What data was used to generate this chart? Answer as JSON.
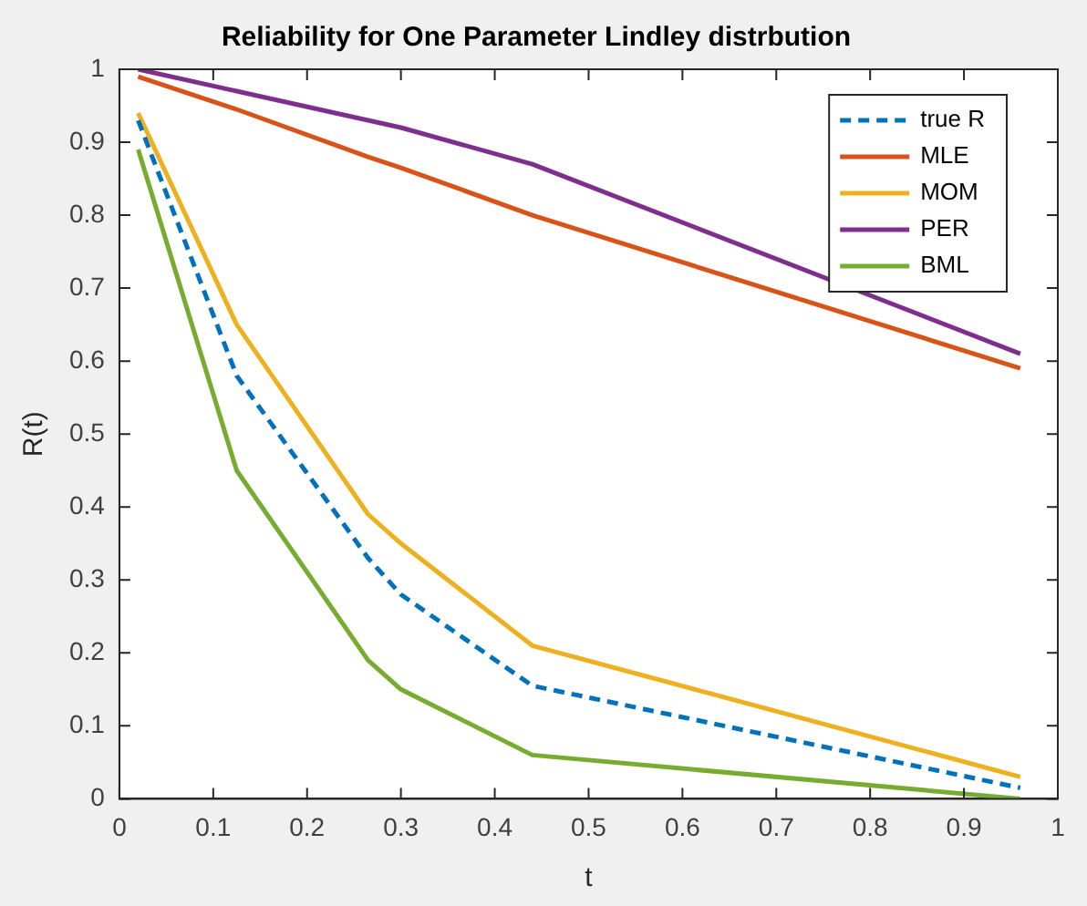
{
  "chart_data": {
    "type": "line",
    "title": "Reliability for One Parameter Lindley distrbution",
    "xlabel": "t",
    "ylabel": "R(t)",
    "x": [
      0.02,
      0.125,
      0.265,
      0.3,
      0.44,
      0.96
    ],
    "series": [
      {
        "name": "true R",
        "color": "#0072bd",
        "line_style": "dashed",
        "values": [
          0.93,
          0.58,
          0.33,
          0.28,
          0.155,
          0.015
        ]
      },
      {
        "name": "MLE",
        "color": "#d95319",
        "values": [
          0.99,
          0.945,
          0.88,
          0.865,
          0.8,
          0.59
        ]
      },
      {
        "name": "MOM",
        "color": "#edb120",
        "values": [
          0.94,
          0.65,
          0.39,
          0.35,
          0.21,
          0.03
        ]
      },
      {
        "name": "PER",
        "color": "#7e2f8e",
        "values": [
          1.0,
          0.97,
          0.93,
          0.92,
          0.87,
          0.61
        ]
      },
      {
        "name": "BML",
        "color": "#77ac30",
        "values": [
          0.89,
          0.45,
          0.19,
          0.15,
          0.06,
          0.0
        ]
      }
    ],
    "xlim": [
      0,
      1
    ],
    "xticks": [
      0,
      0.1,
      0.2,
      0.3,
      0.4,
      0.5,
      0.6,
      0.7,
      0.8,
      0.9,
      1
    ],
    "ylim": [
      0,
      1
    ],
    "yticks": [
      0,
      0.1,
      0.2,
      0.3,
      0.4,
      0.5,
      0.6,
      0.7,
      0.8,
      0.9,
      1
    ],
    "grid": false,
    "legend": "top right",
    "marker": "none",
    "line_style": "solid"
  }
}
